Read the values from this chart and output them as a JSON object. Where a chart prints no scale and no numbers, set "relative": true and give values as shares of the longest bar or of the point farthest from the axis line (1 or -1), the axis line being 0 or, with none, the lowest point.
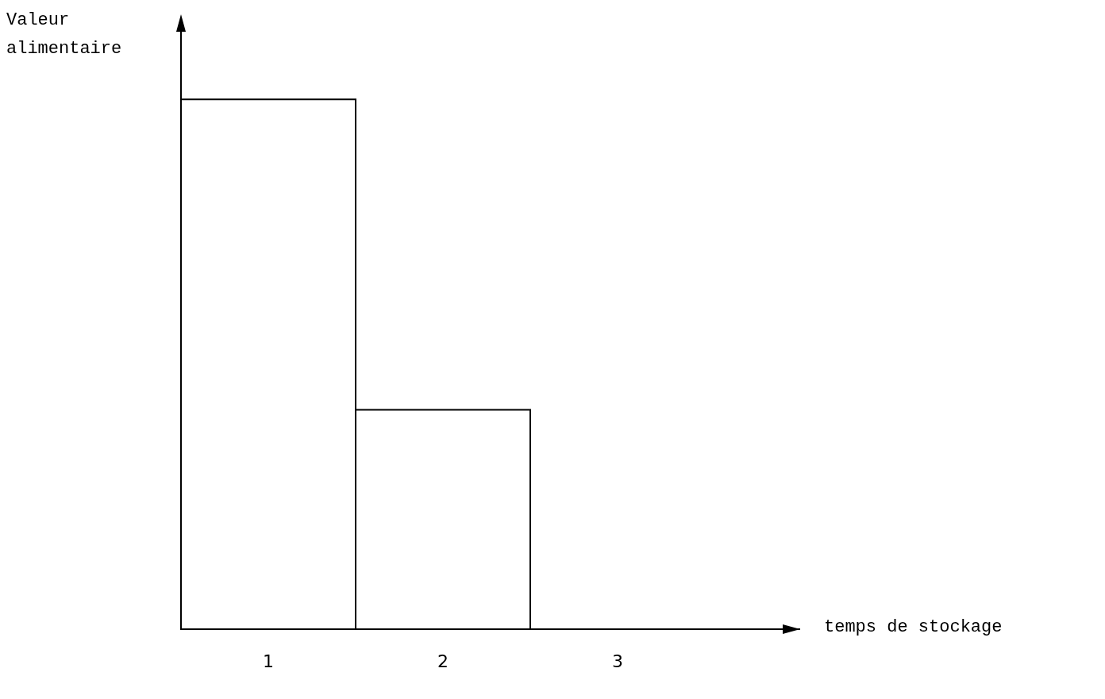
{
  "chart_data": {
    "type": "bar",
    "relative": true,
    "categories": [
      "1",
      "2",
      "3"
    ],
    "values": [
      1,
      0.414,
      0
    ],
    "color": "#ffffff",
    "ylabel": "Valeur alimentaire",
    "xlabel": "temps de stockage"
  }
}
